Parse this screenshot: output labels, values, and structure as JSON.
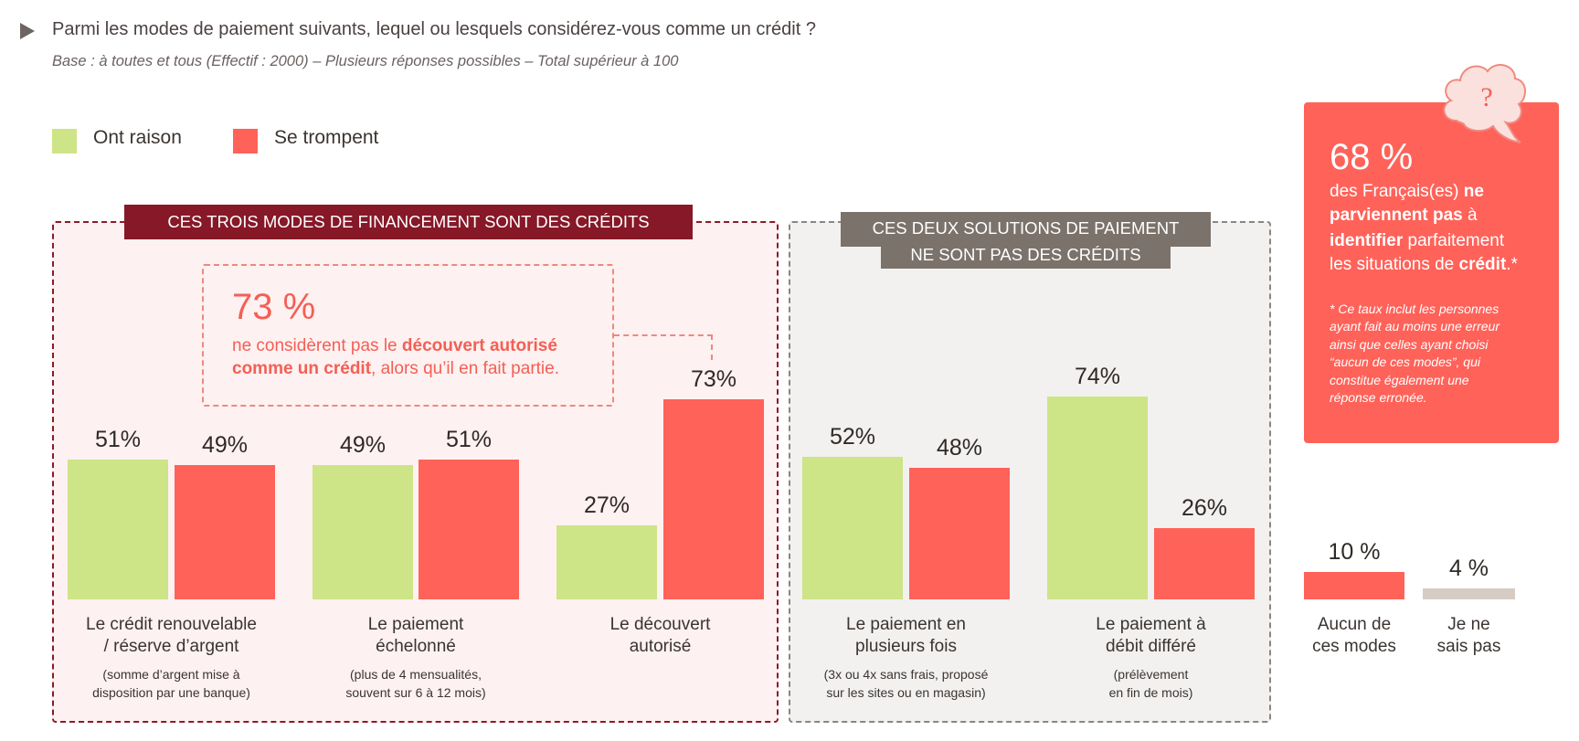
{
  "title": "Parmi les modes de paiement suivants, lequel ou lesquels considérez-vous comme un crédit ?",
  "subtitle": "Base : à toutes et tous (Effectif : 2000) – Plusieurs réponses possibles – Total supérieur à 100",
  "colors": {
    "green": "#cde487",
    "red": "#ff6259",
    "gray": "#d6ccc4",
    "dark_red": "#861827",
    "taupe": "#7b726b"
  },
  "legend": [
    {
      "label": "Ont raison",
      "color": "#cde487"
    },
    {
      "label": "Se trompent",
      "color": "#ff6259"
    }
  ],
  "panel_left": {
    "header": "CES TROIS MODES DE FINANCEMENT SONT DES CRÉDITS"
  },
  "panel_right": {
    "header_line1": "CES DEUX SOLUTIONS DE PAIEMENT",
    "header_line2": "NE SONT PAS DES CRÉDITS"
  },
  "callout": {
    "value": "73 %",
    "line1_a": "ne considèrent pas le ",
    "line1_b": "découvert autorisé",
    "line2_a": "comme un crédit",
    "line2_b": ", alors qu’il en fait partie."
  },
  "highlight": {
    "value": "68 %",
    "l1a": "des Français(es) ",
    "l1b": "ne",
    "l2a": "parviennent pas",
    "l2b": " à",
    "l3a": "identifier",
    "l3b": " parfaitement",
    "l4a": "les situations de ",
    "l4b": "crédit",
    "l4c": ".*",
    "footnote": [
      "* Ce taux inclut les personnes",
      "ayant fait au moins une erreur",
      "ainsi que celles ayant choisi",
      "“aucun de ces modes”, qui",
      "constitue également une",
      "réponse erronée."
    ],
    "icon": "question-thought-bubble-icon",
    "icon_text": "?"
  },
  "chart_data": {
    "type": "bar",
    "series": [
      {
        "name": "Ont raison"
      },
      {
        "name": "Se trompent"
      }
    ],
    "categories": [
      {
        "label": [
          "Le crédit renouvelable",
          "/ réserve d’argent"
        ],
        "sub": [
          "(somme d’argent mise à",
          "disposition par une banque)"
        ],
        "values": [
          51,
          49
        ],
        "labels": [
          "51%",
          "49%"
        ]
      },
      {
        "label": [
          "Le paiement",
          "échelonné"
        ],
        "sub": [
          "(plus de 4 mensualités,",
          "souvent sur 6 à 12 mois)"
        ],
        "values": [
          49,
          51
        ],
        "labels": [
          "49%",
          "51%"
        ]
      },
      {
        "label": [
          "Le découvert",
          "autorisé"
        ],
        "sub": [],
        "values": [
          27,
          73
        ],
        "labels": [
          "27%",
          "73%"
        ]
      },
      {
        "label": [
          "Le paiement en",
          "plusieurs fois"
        ],
        "sub": [
          "(3x ou 4x sans frais, proposé",
          "sur les sites ou en magasin)"
        ],
        "values": [
          52,
          48
        ],
        "labels": [
          "52%",
          "48%"
        ]
      },
      {
        "label": [
          "Le paiement à",
          "débit différé"
        ],
        "sub": [
          "(prélèvement",
          "en fin de mois)"
        ],
        "values": [
          74,
          26
        ],
        "labels": [
          "74%",
          "26%"
        ]
      }
    ],
    "extra": [
      {
        "label": [
          "Aucun de",
          "ces modes"
        ],
        "value": 10,
        "value_label": "10 %",
        "color": "#ff6259"
      },
      {
        "label": [
          "Je ne",
          "sais pas"
        ],
        "value": 4,
        "value_label": "4 %",
        "color": "#d6ccc4"
      }
    ],
    "ylim": [
      0,
      100
    ]
  }
}
